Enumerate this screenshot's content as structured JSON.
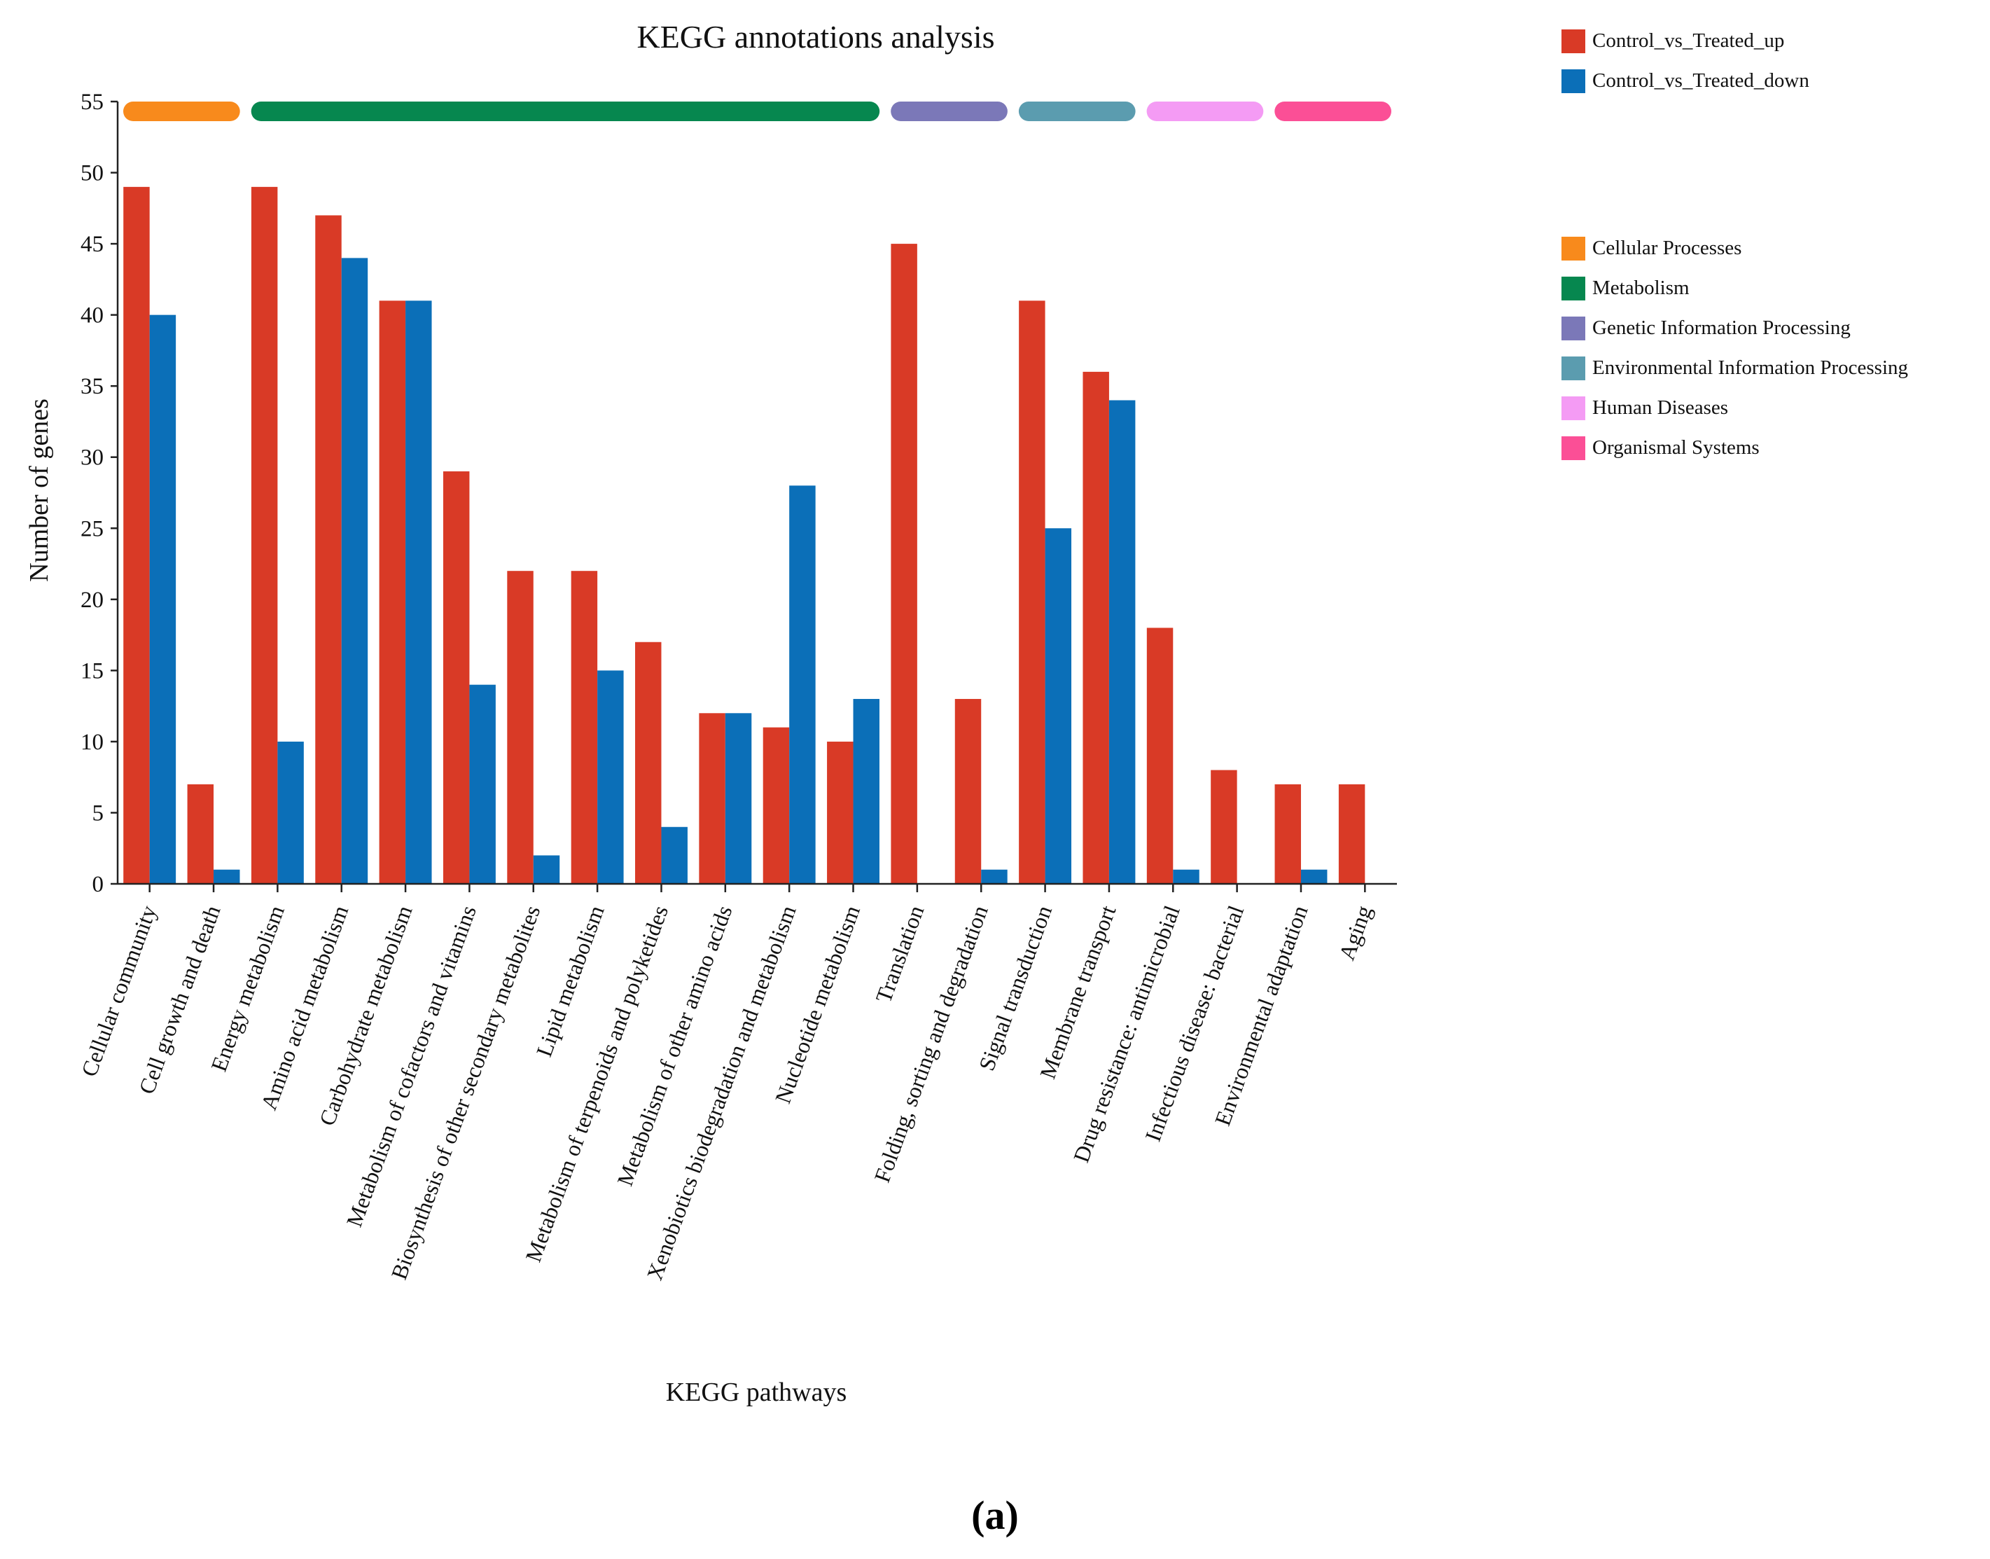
{
  "chart_data": {
    "type": "bar",
    "title": "KEGG annotations analysis",
    "xlabel": "KEGG pathways",
    "ylabel": "Number of genes",
    "ylim": [
      0,
      55
    ],
    "yticks": [
      0,
      5,
      10,
      15,
      20,
      25,
      30,
      35,
      40,
      45,
      50,
      55
    ],
    "categories": [
      "Cellular community",
      "Cell growth and death",
      "Energy metabolism",
      "Amino acid metabolism",
      "Carbohydrate metabolism",
      "Metabolism of cofactors and vitamins",
      "Biosynthesis of other secondary metabolites",
      "Lipid metabolism",
      "Metabolism of terpenoids and polyketides",
      "Metabolism of other amino acids",
      "Xenobiotics biodegradation and metabolism",
      "Nucleotide metabolism",
      "Translation",
      "Folding, sorting and degradation",
      "Signal transduction",
      "Membrane transport",
      "Drug resistance: antimicrobial",
      "Infectious disease: bacterial",
      "Environmental adaptation",
      "Aging"
    ],
    "series": [
      {
        "name": "Control_vs_Treated_up",
        "color": "#d93a26",
        "values": [
          49,
          7,
          49,
          47,
          41,
          29,
          22,
          22,
          17,
          12,
          11,
          10,
          45,
          13,
          41,
          36,
          18,
          8,
          7,
          7
        ]
      },
      {
        "name": "Control_vs_Treated_down",
        "color": "#0b6fb8",
        "values": [
          40,
          1,
          10,
          44,
          41,
          14,
          2,
          15,
          4,
          12,
          28,
          13,
          0,
          1,
          25,
          34,
          1,
          0,
          1,
          0
        ]
      }
    ],
    "pathway_groups": [
      {
        "name": "Cellular Processes",
        "color": "#f88a1c",
        "start": 0,
        "end": 1
      },
      {
        "name": "Metabolism",
        "color": "#06874f",
        "start": 2,
        "end": 11
      },
      {
        "name": "Genetic Information Processing",
        "color": "#7b78b8",
        "start": 12,
        "end": 13
      },
      {
        "name": "Environmental Information Processing",
        "color": "#5b9caf",
        "start": 14,
        "end": 15
      },
      {
        "name": "Human Diseases",
        "color": "#f49bf4",
        "start": 16,
        "end": 17
      },
      {
        "name": "Organismal Systems",
        "color": "#fb4f96",
        "start": 18,
        "end": 19
      }
    ],
    "legend_position": "top-right"
  },
  "panel_label": "(a)"
}
